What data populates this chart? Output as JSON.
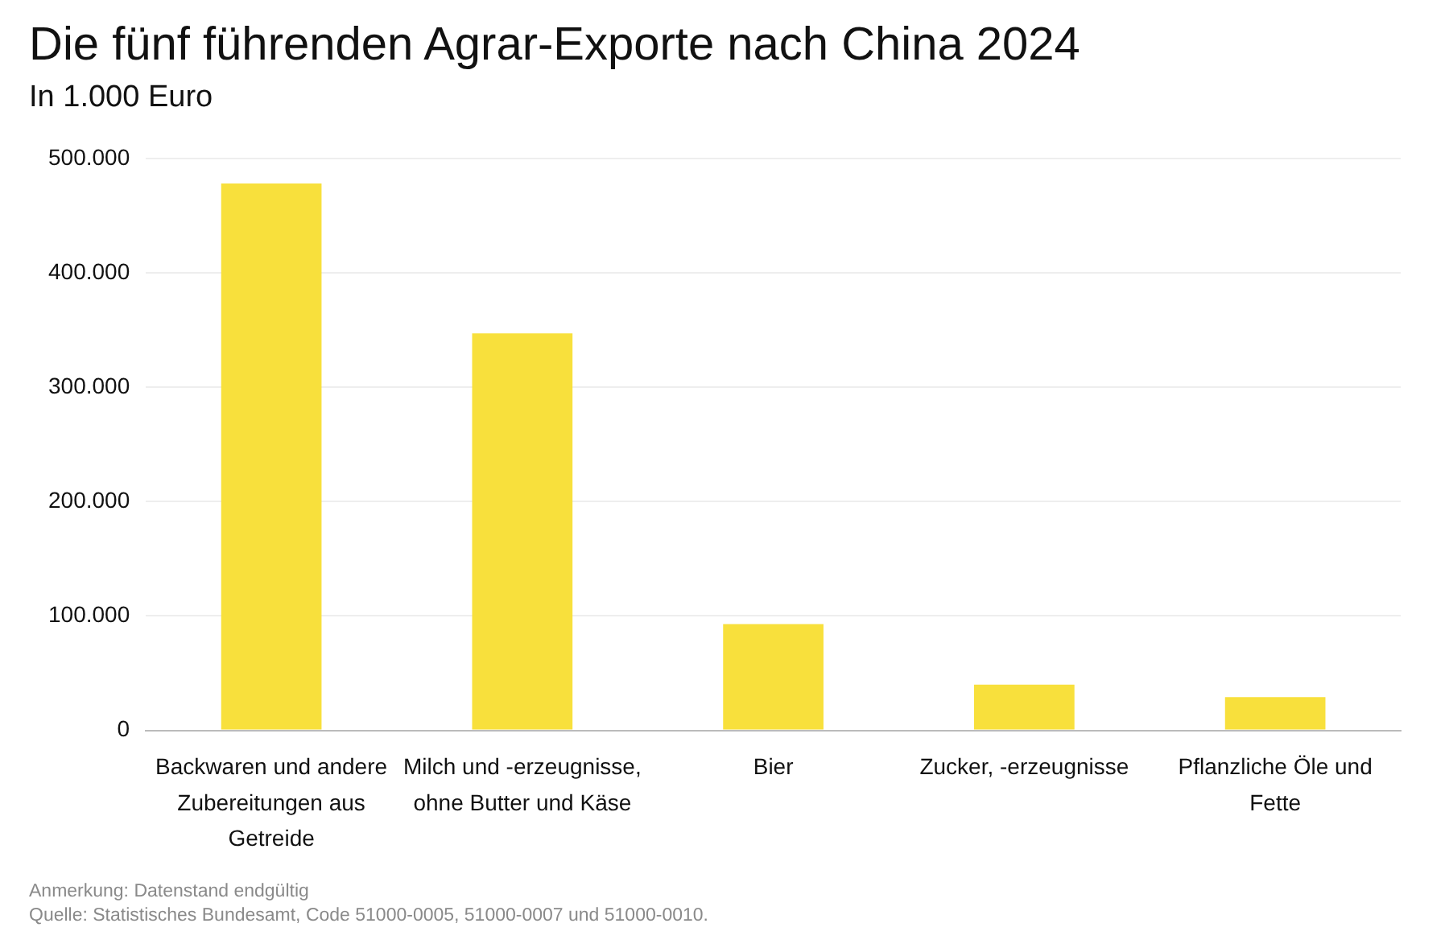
{
  "chart_data": {
    "type": "bar",
    "title": "Die fünf führenden Agrar-Exporte nach China 2024",
    "subtitle": "In 1.000 Euro",
    "categories": [
      "Backwaren und andere Zubereitungen aus Getreide",
      "Milch und -erzeugnisse, ohne Butter und Käse",
      "Bier",
      "Zucker, -erzeugnisse",
      "Pflanzliche Öle und Fette"
    ],
    "values": [
      478000,
      347000,
      93000,
      40000,
      29000
    ],
    "color": "#f8e03c",
    "ylim": [
      0,
      500000
    ],
    "yticks": [
      {
        "value": 0,
        "label": "0"
      },
      {
        "value": 100000,
        "label": "100.000"
      },
      {
        "value": 200000,
        "label": "200.000"
      },
      {
        "value": 300000,
        "label": "300.000"
      },
      {
        "value": 400000,
        "label": "400.000"
      },
      {
        "value": 500000,
        "label": "500.000"
      }
    ],
    "grid": "y",
    "legend": false,
    "annotations": [
      "Anmerkung: Datenstand endgültig",
      "Quelle: Statistisches Bundesamt, Code 51000-0005, 51000-0007 und 51000-0010."
    ]
  }
}
